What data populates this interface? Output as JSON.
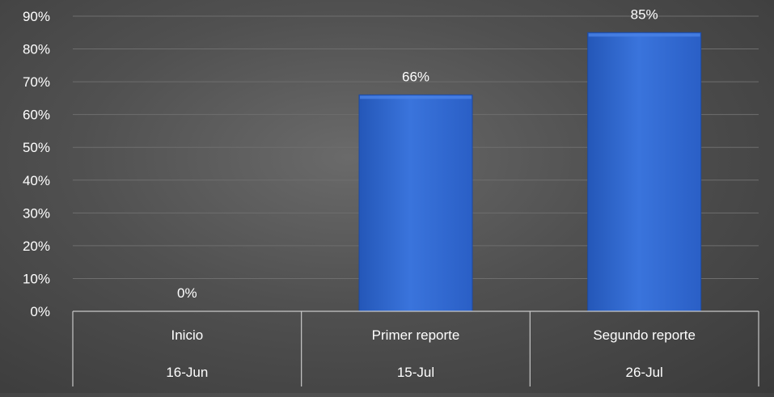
{
  "chart_data": {
    "type": "bar",
    "categories": [
      {
        "name": "Inicio",
        "date": "16-Jun"
      },
      {
        "name": "Primer reporte",
        "date": "15-Jul"
      },
      {
        "name": "Segundo reporte",
        "date": "26-Jul"
      }
    ],
    "values": [
      0,
      66,
      85
    ],
    "data_labels": [
      "0%",
      "66%",
      "85%"
    ],
    "y_ticks": [
      "0%",
      "10%",
      "20%",
      "30%",
      "40%",
      "50%",
      "60%",
      "70%",
      "80%",
      "90%"
    ],
    "ylim": [
      0,
      90
    ],
    "y_unit": "%",
    "grid": true,
    "legend": "none",
    "title": "",
    "xlabel": "",
    "ylabel": "",
    "colors": {
      "bar": "#2f66cf",
      "bar_highlight": "#4a82e6",
      "grid": "#6e6e6e",
      "axis": "#c8c8c8",
      "text": "#ffffff"
    }
  }
}
